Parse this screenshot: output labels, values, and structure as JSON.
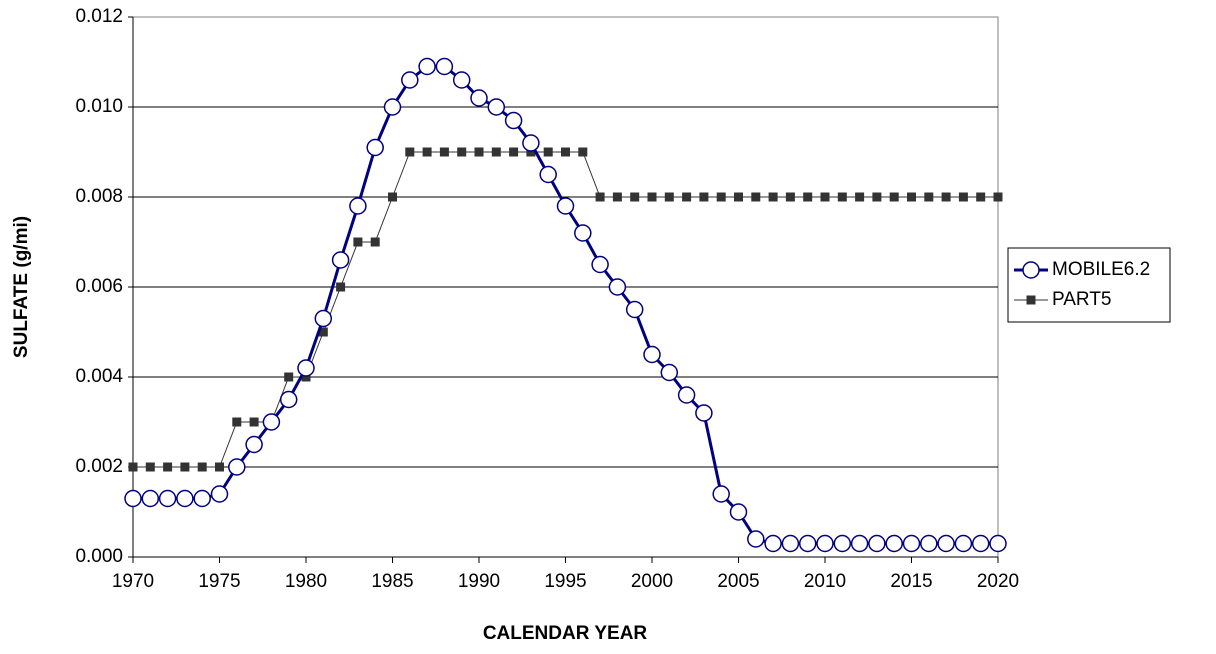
{
  "chart_data": {
    "type": "line",
    "xlabel": "CALENDAR YEAR",
    "ylabel": "SULFATE (g/mi)",
    "x": [
      1970,
      1971,
      1972,
      1973,
      1974,
      1975,
      1976,
      1977,
      1978,
      1979,
      1980,
      1981,
      1982,
      1983,
      1984,
      1985,
      1986,
      1987,
      1988,
      1989,
      1990,
      1991,
      1992,
      1993,
      1994,
      1995,
      1996,
      1997,
      1998,
      1999,
      2000,
      2001,
      2002,
      2003,
      2004,
      2005,
      2006,
      2007,
      2008,
      2009,
      2010,
      2011,
      2012,
      2013,
      2014,
      2015,
      2016,
      2017,
      2018,
      2019,
      2020
    ],
    "series": [
      {
        "name": "MOBILE6.2",
        "color": "#000080",
        "marker": "circle",
        "values": [
          0.0013,
          0.0013,
          0.0013,
          0.0013,
          0.0013,
          0.0014,
          0.002,
          0.0025,
          0.003,
          0.0035,
          0.0042,
          0.0053,
          0.0066,
          0.0078,
          0.0091,
          0.01,
          0.0106,
          0.0109,
          0.0109,
          0.0106,
          0.0102,
          0.01,
          0.0097,
          0.0092,
          0.0085,
          0.0078,
          0.0072,
          0.0065,
          0.006,
          0.0055,
          0.0045,
          0.0041,
          0.0036,
          0.0032,
          0.0014,
          0.001,
          0.0004,
          0.0003,
          0.0003,
          0.0003,
          0.0003,
          0.0003,
          0.0003,
          0.0003,
          0.0003,
          0.0003,
          0.0003,
          0.0003,
          0.0003,
          0.0003,
          0.0003
        ]
      },
      {
        "name": "PART5",
        "color": "#333333",
        "marker": "square",
        "values": [
          0.002,
          0.002,
          0.002,
          0.002,
          0.002,
          0.002,
          0.003,
          0.003,
          0.003,
          0.004,
          0.004,
          0.005,
          0.006,
          0.007,
          0.007,
          0.008,
          0.009,
          0.009,
          0.009,
          0.009,
          0.009,
          0.009,
          0.009,
          0.009,
          0.009,
          0.009,
          0.009,
          0.008,
          0.008,
          0.008,
          0.008,
          0.008,
          0.008,
          0.008,
          0.008,
          0.008,
          0.008,
          0.008,
          0.008,
          0.008,
          0.008,
          0.008,
          0.008,
          0.008,
          0.008,
          0.008,
          0.008,
          0.008,
          0.008,
          0.008,
          0.008
        ]
      }
    ],
    "xlim": [
      1970,
      2020
    ],
    "xticks": [
      1970,
      1975,
      1980,
      1985,
      1990,
      1995,
      2000,
      2005,
      2010,
      2015,
      2020
    ],
    "ylim": [
      0,
      0.012
    ],
    "yticks": [
      {
        "value": 0,
        "label": "0.000"
      },
      0.002,
      0.004,
      0.006,
      0.008,
      {
        "value": 0.01,
        "label": "0.010"
      },
      0.012
    ],
    "grid": true,
    "legend": "right"
  }
}
